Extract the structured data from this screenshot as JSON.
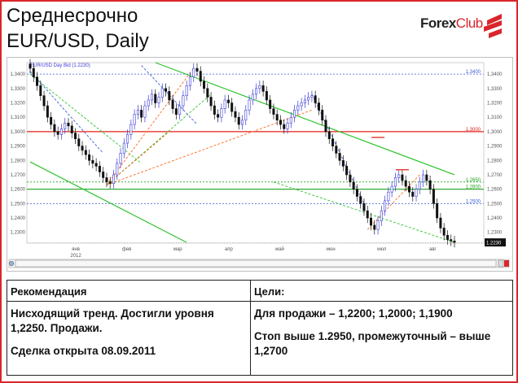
{
  "header": {
    "title_line1": "Среднесрочно",
    "title_line2": "EUR/USD, Daily"
  },
  "logo": {
    "forex": "Forex",
    "club": "Club"
  },
  "colors": {
    "frame": "#d9262b",
    "bull": "#3a3ad6",
    "bear": "#111111",
    "resistance_red": "#e0201a",
    "support_green": "#1ea11e",
    "channel_green": "#2fc42f",
    "fib_orange": "#ff6a1a",
    "blue_dash": "#3a5ed6"
  },
  "chart_data": {
    "type": "candlestick",
    "legend_text": "EUR/USD Day Bid (1.2230)",
    "y_ticks": [
      "1,3400",
      "1,3300",
      "1,3200",
      "1,3100",
      "1,3000",
      "1,2900",
      "1,2800",
      "1,2700",
      "1,2600",
      "1,2500",
      "1,2400",
      "1,2300"
    ],
    "ylim": [
      1.2225,
      1.348
    ],
    "x_month_labels": [
      "янв",
      "фев",
      "мар",
      "апр",
      "май",
      "июн",
      "июл",
      "авг"
    ],
    "x_year_label": "2012",
    "current_price": "1.2230",
    "levels": [
      {
        "label": "1,3400",
        "value": 1.34,
        "color": "#3a5ed6",
        "style": "dotted"
      },
      {
        "label": "1,3000",
        "value": 1.3,
        "color": "#e0201a",
        "style": "solid"
      },
      {
        "label": "1,2650",
        "value": 1.265,
        "color": "#1ea11e",
        "style": "dotted"
      },
      {
        "label": "1,2600",
        "value": 1.26,
        "color": "#1ea11e",
        "style": "solid"
      },
      {
        "label": "1,2500",
        "value": 1.25,
        "color": "#3a5ed6",
        "style": "dotted"
      }
    ],
    "closes": [
      1.344,
      1.338,
      1.332,
      1.325,
      1.318,
      1.31,
      1.305,
      1.3,
      1.298,
      1.302,
      1.306,
      1.304,
      1.299,
      1.295,
      1.29,
      1.287,
      1.284,
      1.28,
      1.278,
      1.276,
      1.272,
      1.268,
      1.265,
      1.264,
      1.27,
      1.278,
      1.285,
      1.292,
      1.298,
      1.305,
      1.312,
      1.315,
      1.31,
      1.318,
      1.322,
      1.326,
      1.32,
      1.324,
      1.33,
      1.328,
      1.322,
      1.316,
      1.312,
      1.318,
      1.325,
      1.332,
      1.338,
      1.344,
      1.342,
      1.335,
      1.33,
      1.324,
      1.318,
      1.312,
      1.31,
      1.316,
      1.322,
      1.32,
      1.314,
      1.31,
      1.305,
      1.308,
      1.315,
      1.322,
      1.326,
      1.33,
      1.332,
      1.328,
      1.322,
      1.316,
      1.312,
      1.308,
      1.305,
      1.302,
      1.306,
      1.31,
      1.315,
      1.318,
      1.32,
      1.322,
      1.324,
      1.325,
      1.32,
      1.315,
      1.308,
      1.3,
      1.295,
      1.29,
      1.285,
      1.28,
      1.276,
      1.27,
      1.265,
      1.26,
      1.255,
      1.25,
      1.245,
      1.24,
      1.235,
      1.232,
      1.238,
      1.245,
      1.252,
      1.258,
      1.262,
      1.268,
      1.27,
      1.266,
      1.262,
      1.258,
      1.255,
      1.26,
      1.265,
      1.27,
      1.266,
      1.26,
      1.25,
      1.24,
      1.233,
      1.228,
      1.225,
      1.224,
      1.223
    ],
    "annotations": [
      {
        "kind": "red-mark",
        "x": 100,
        "value": 1.296
      },
      {
        "kind": "red-mark",
        "x": 107,
        "value": 1.2735
      }
    ]
  },
  "table": {
    "col1_header": "Рекомендация",
    "col2_header": "Цели:",
    "col1_line1": "Нисходящий тренд. Достигли уровня 1,2250. Продажи.",
    "col1_line2": "Сделка открыта 08.09.2011",
    "col2_line1": "Для продажи – 1,2200; 1,2000; 1,1900",
    "col2_line2": "Стоп выше 1.2950, промежуточный – выше 1,2700"
  }
}
